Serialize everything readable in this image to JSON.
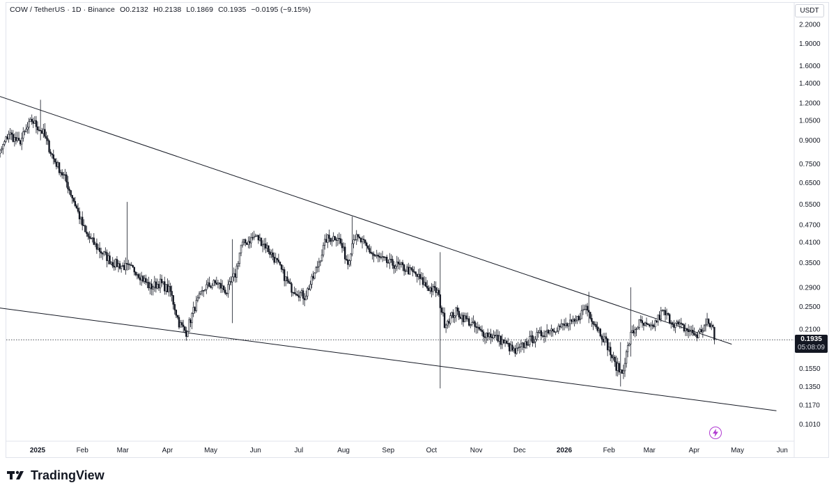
{
  "legend": {
    "symbol": "COW / TetherUS · 1D · Binance",
    "open": "O0.2132",
    "high": "H0.2138",
    "low": "L0.1869",
    "close": "C0.1935",
    "change": "−0.0195 (−9.15%)"
  },
  "currency": "USDT",
  "price_tag": {
    "price": "0.1935",
    "countdown": "05:08:09"
  },
  "brand": "TradingView",
  "chart_data": {
    "type": "candlestick",
    "symbol": "COW / TetherUS",
    "interval": "1D",
    "exchange": "Binance",
    "y_scale": "log",
    "y_ticks": [
      "2.2000",
      "1.9000",
      "1.6000",
      "1.4000",
      "1.2000",
      "1.0500",
      "0.9000",
      "0.7500",
      "0.6500",
      "0.5500",
      "0.4700",
      "0.4100",
      "0.3500",
      "0.2900",
      "0.2500",
      "0.2100",
      "0.1550",
      "0.1350",
      "0.1170",
      "0.1010"
    ],
    "x_ticks": [
      {
        "label": "2025",
        "bold": true,
        "date": "2025-01-01"
      },
      {
        "label": "Feb",
        "date": "2025-02-01"
      },
      {
        "label": "Mar",
        "date": "2025-03-01"
      },
      {
        "label": "Apr",
        "date": "2025-04-01"
      },
      {
        "label": "May",
        "date": "2025-05-01"
      },
      {
        "label": "Jun",
        "date": "2025-06-01"
      },
      {
        "label": "Jul",
        "date": "2025-07-01"
      },
      {
        "label": "Aug",
        "date": "2025-08-01"
      },
      {
        "label": "Sep",
        "date": "2025-09-01"
      },
      {
        "label": "Oct",
        "date": "2025-10-01"
      },
      {
        "label": "Nov",
        "date": "2025-11-01"
      },
      {
        "label": "Dec",
        "date": "2025-12-01"
      },
      {
        "label": "2026",
        "bold": true,
        "date": "2026-01-01"
      },
      {
        "label": "Feb",
        "date": "2026-02-01"
      },
      {
        "label": "Mar",
        "date": "2026-03-01"
      },
      {
        "label": "Apr",
        "date": "2026-04-01"
      },
      {
        "label": "May",
        "date": "2026-05-01"
      },
      {
        "label": "Jun",
        "date": "2026-06-01"
      }
    ],
    "close_path": [
      [
        "2024-11-28",
        0.41
      ],
      [
        "2024-12-05",
        0.8
      ],
      [
        "2024-12-12",
        0.95
      ],
      [
        "2024-12-19",
        0.88
      ],
      [
        "2024-12-28",
        1.05
      ],
      [
        "2025-01-05",
        0.95
      ],
      [
        "2025-01-12",
        0.78
      ],
      [
        "2025-01-20",
        0.67
      ],
      [
        "2025-01-27",
        0.55
      ],
      [
        "2025-02-03",
        0.44
      ],
      [
        "2025-02-12",
        0.39
      ],
      [
        "2025-02-22",
        0.35
      ],
      [
        "2025-03-02",
        0.34
      ],
      [
        "2025-03-10",
        0.33
      ],
      [
        "2025-03-20",
        0.29
      ],
      [
        "2025-03-27",
        0.3
      ],
      [
        "2025-04-03",
        0.28
      ],
      [
        "2025-04-09",
        0.22
      ],
      [
        "2025-04-14",
        0.205
      ],
      [
        "2025-04-20",
        0.25
      ],
      [
        "2025-04-27",
        0.29
      ],
      [
        "2025-05-05",
        0.3
      ],
      [
        "2025-05-12",
        0.28
      ],
      [
        "2025-05-18",
        0.32
      ],
      [
        "2025-05-22",
        0.4
      ],
      [
        "2025-06-01",
        0.43
      ],
      [
        "2025-06-08",
        0.4
      ],
      [
        "2025-06-16",
        0.35
      ],
      [
        "2025-06-25",
        0.29
      ],
      [
        "2025-07-05",
        0.27
      ],
      [
        "2025-07-12",
        0.32
      ],
      [
        "2025-07-20",
        0.42
      ],
      [
        "2025-07-28",
        0.43
      ],
      [
        "2025-08-04",
        0.35
      ],
      [
        "2025-08-08",
        0.43
      ],
      [
        "2025-08-14",
        0.41
      ],
      [
        "2025-08-22",
        0.37
      ],
      [
        "2025-09-01",
        0.35
      ],
      [
        "2025-09-10",
        0.34
      ],
      [
        "2025-09-20",
        0.32
      ],
      [
        "2025-09-28",
        0.29
      ],
      [
        "2025-10-05",
        0.28
      ],
      [
        "2025-10-10",
        0.22
      ],
      [
        "2025-10-18",
        0.24
      ],
      [
        "2025-10-28",
        0.22
      ],
      [
        "2025-11-04",
        0.205
      ],
      [
        "2025-11-12",
        0.2
      ],
      [
        "2025-11-20",
        0.19
      ],
      [
        "2025-11-28",
        0.175
      ],
      [
        "2025-12-06",
        0.19
      ],
      [
        "2025-12-14",
        0.2
      ],
      [
        "2025-12-22",
        0.21
      ],
      [
        "2025-12-31",
        0.215
      ],
      [
        "2026-01-08",
        0.22
      ],
      [
        "2026-01-16",
        0.25
      ],
      [
        "2026-01-22",
        0.22
      ],
      [
        "2026-01-30",
        0.19
      ],
      [
        "2026-02-05",
        0.16
      ],
      [
        "2026-02-10",
        0.15
      ],
      [
        "2026-02-16",
        0.2
      ],
      [
        "2026-02-22",
        0.22
      ],
      [
        "2026-03-02",
        0.21
      ],
      [
        "2026-03-10",
        0.24
      ],
      [
        "2026-03-18",
        0.22
      ],
      [
        "2026-03-26",
        0.21
      ],
      [
        "2026-04-03",
        0.2
      ],
      [
        "2026-04-10",
        0.22
      ],
      [
        "2026-04-14",
        0.2132
      ],
      [
        "2026-04-15",
        0.1935
      ]
    ],
    "wicks": [
      {
        "date": "2025-01-03",
        "low": 0.9,
        "high": 1.23
      },
      {
        "date": "2025-03-04",
        "low": 0.33,
        "high": 0.56
      },
      {
        "date": "2025-05-16",
        "low": 0.22,
        "high": 0.42
      },
      {
        "date": "2025-08-07",
        "low": 0.4,
        "high": 0.5
      },
      {
        "date": "2025-10-07",
        "low": 0.133,
        "high": 0.38
      },
      {
        "date": "2026-01-18",
        "low": 0.22,
        "high": 0.28
      },
      {
        "date": "2026-02-09",
        "low": 0.135,
        "high": 0.19
      },
      {
        "date": "2026-02-16",
        "low": 0.17,
        "high": 0.29
      }
    ],
    "last": {
      "open": 0.2132,
      "high": 0.2138,
      "low": 0.1869,
      "close": 0.1935
    },
    "trendlines": [
      {
        "name": "upper-trendline",
        "from": [
          "2024-11-28",
          1.3
        ],
        "to": [
          "2026-04-27",
          0.187
        ]
      },
      {
        "name": "lower-trendline",
        "from": [
          "2024-11-28",
          0.25
        ],
        "to": [
          "2026-05-28",
          0.112
        ]
      }
    ]
  }
}
